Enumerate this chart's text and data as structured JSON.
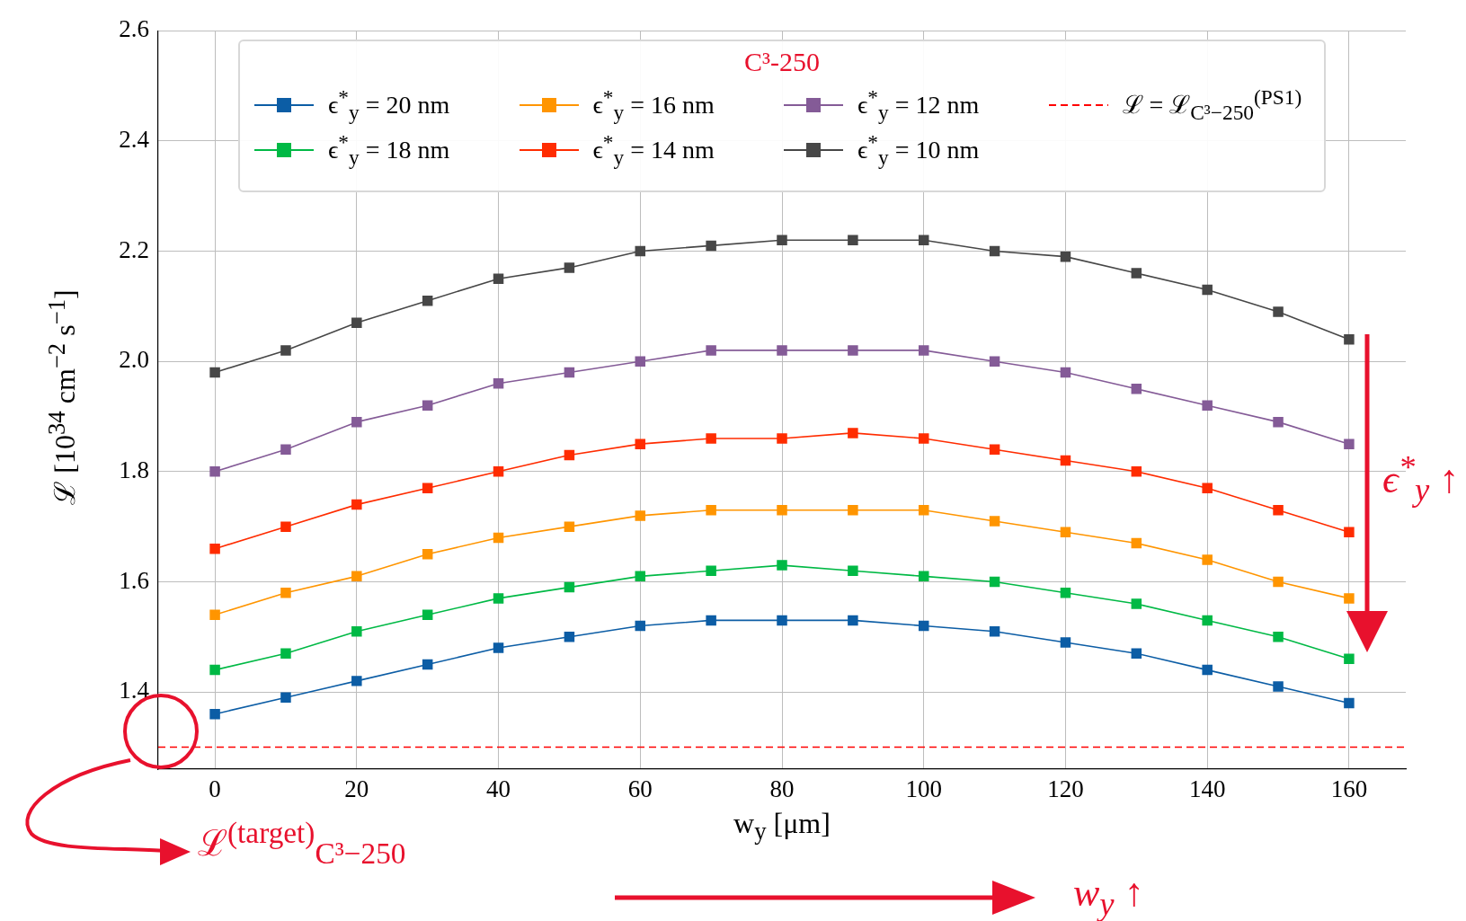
{
  "chart_data": {
    "type": "line",
    "xlabel": "w$_{y}$ [μm]",
    "ylabel": "ℒ [10$^{34}$ cm$^{−2}$ s$^{−1}$]",
    "legend_title": "C³-250",
    "x": [
      0,
      10,
      20,
      30,
      40,
      50,
      60,
      70,
      80,
      90,
      100,
      110,
      120,
      130,
      140,
      150,
      160
    ],
    "xlim": [
      -8,
      168
    ],
    "xticks": [
      0,
      20,
      40,
      60,
      80,
      100,
      120,
      140,
      160
    ],
    "ylim": [
      1.26,
      2.6
    ],
    "yticks": [
      {
        "value": 1.4,
        "label": "1.4"
      },
      {
        "value": 1.6,
        "label": "1.6"
      },
      {
        "value": 1.8,
        "label": "1.8"
      },
      {
        "value": 2,
        "label": "2.0"
      },
      {
        "value": 2.2,
        "label": "2.2"
      },
      {
        "value": 2.4,
        "label": "2.4"
      },
      {
        "value": 2.6,
        "label": "2.6"
      }
    ],
    "grid": true,
    "legend": "top",
    "marker": "square",
    "line_style": "solid",
    "series": [
      {
        "name": "ϵ$^{*}$$_{y}$ = 20 nm",
        "color": "#0c5da5",
        "values": [
          1.36,
          1.39,
          1.42,
          1.45,
          1.48,
          1.5,
          1.52,
          1.53,
          1.53,
          1.53,
          1.52,
          1.51,
          1.49,
          1.47,
          1.44,
          1.41,
          1.38
        ]
      },
      {
        "name": "ϵ$^{*}$$_{y}$ = 18 nm",
        "color": "#00b945",
        "values": [
          1.44,
          1.47,
          1.51,
          1.54,
          1.57,
          1.59,
          1.61,
          1.62,
          1.63,
          1.62,
          1.61,
          1.6,
          1.58,
          1.56,
          1.53,
          1.5,
          1.46
        ]
      },
      {
        "name": "ϵ$^{*}$$_{y}$ = 16 nm",
        "color": "#ff9500",
        "values": [
          1.54,
          1.58,
          1.61,
          1.65,
          1.68,
          1.7,
          1.72,
          1.73,
          1.73,
          1.73,
          1.73,
          1.71,
          1.69,
          1.67,
          1.64,
          1.6,
          1.57
        ]
      },
      {
        "name": "ϵ$^{*}$$_{y}$ = 14 nm",
        "color": "#ff2c00",
        "values": [
          1.66,
          1.7,
          1.74,
          1.77,
          1.8,
          1.83,
          1.85,
          1.86,
          1.86,
          1.87,
          1.86,
          1.84,
          1.82,
          1.8,
          1.77,
          1.73,
          1.69
        ]
      },
      {
        "name": "ϵ$^{*}$$_{y}$ = 12 nm",
        "color": "#845b97",
        "values": [
          1.8,
          1.84,
          1.89,
          1.92,
          1.96,
          1.98,
          2.0,
          2.02,
          2.02,
          2.02,
          2.02,
          2.0,
          1.98,
          1.95,
          1.92,
          1.89,
          1.85
        ]
      },
      {
        "name": "ϵ$^{*}$$_{y}$ = 10 nm",
        "color": "#474747",
        "values": [
          1.98,
          2.02,
          2.07,
          2.11,
          2.15,
          2.17,
          2.2,
          2.21,
          2.22,
          2.22,
          2.22,
          2.2,
          2.19,
          2.16,
          2.13,
          2.09,
          2.04
        ]
      }
    ],
    "ref_lines": [
      {
        "axis": "y",
        "value": 1.3,
        "label": "ℒ = ℒ$_{C³−250}$$^{(PS1)}$",
        "color": "#ff0000",
        "line_style": "dashed"
      }
    ],
    "annotations": [
      "ℒ$^{(target)}$$_{C³−250}$",
      "w$_{y}$ ↑",
      "ϵ$^{*}$$_{y}$ ↑"
    ]
  }
}
